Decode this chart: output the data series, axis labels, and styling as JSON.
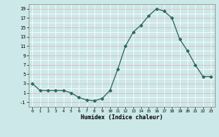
{
  "x": [
    0,
    1,
    2,
    3,
    4,
    5,
    6,
    7,
    8,
    9,
    10,
    11,
    12,
    13,
    14,
    15,
    16,
    17,
    18,
    19,
    20,
    21,
    22,
    23
  ],
  "y": [
    3,
    1.5,
    1.5,
    1.5,
    1.5,
    1,
    0,
    -0.5,
    -0.7,
    -0.2,
    1.5,
    6,
    11,
    14,
    15.5,
    17.5,
    19,
    18.5,
    17,
    12.5,
    10,
    7,
    4.5,
    4.5
  ],
  "line_color": "#2e6b5e",
  "marker": "D",
  "marker_size": 2.0,
  "bg_color": "#cce8e8",
  "grid_major_color": "#e8b8b8",
  "grid_minor_color": "#ffffff",
  "xlabel": "Humidex (Indice chaleur)",
  "ylim": [
    -2,
    20
  ],
  "xlim": [
    -0.5,
    23.5
  ],
  "yticks": [
    -1,
    1,
    3,
    5,
    7,
    9,
    11,
    13,
    15,
    17,
    19
  ],
  "xticks": [
    0,
    1,
    2,
    3,
    4,
    5,
    6,
    7,
    8,
    9,
    10,
    11,
    12,
    13,
    14,
    15,
    16,
    17,
    18,
    19,
    20,
    21,
    22,
    23
  ],
  "xlabel_fontsize": 6.0,
  "tick_fontsize": 5.0
}
